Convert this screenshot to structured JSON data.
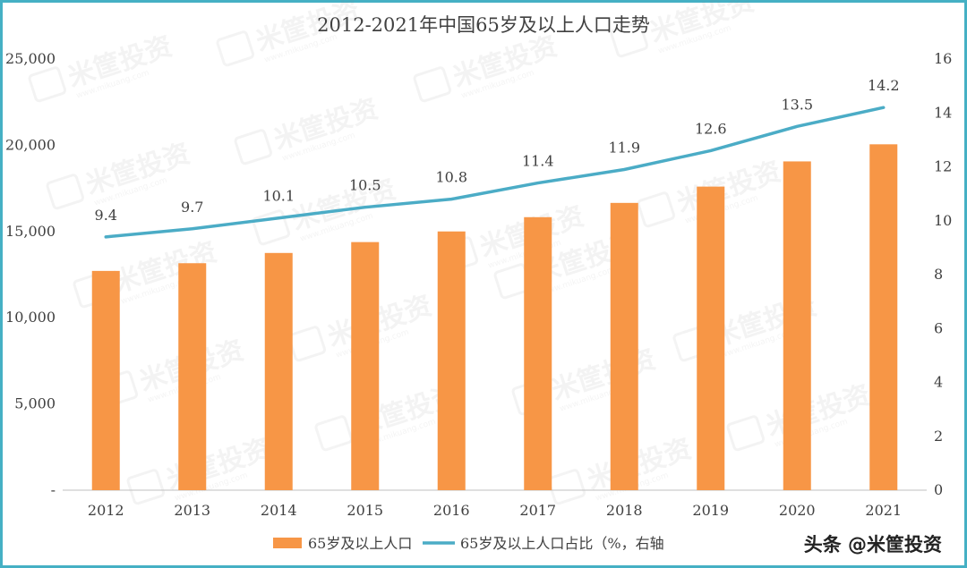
{
  "title": "2012-2021年中国65岁及以上人口走势",
  "footer_badge": "头条 @米筐投资",
  "watermark": {
    "main": "米筐投资",
    "sub": "www.mikuang.com"
  },
  "colors": {
    "bar": "#f79646",
    "line": "#4bacc6",
    "frame": "#45b0c4",
    "text": "#404040",
    "axis": "#bfbfbf"
  },
  "chart_data": {
    "type": "bar",
    "categories": [
      "2012",
      "2013",
      "2014",
      "2015",
      "2016",
      "2017",
      "2018",
      "2019",
      "2020",
      "2021"
    ],
    "series": [
      {
        "name": "65岁及以上人口",
        "type": "bar",
        "axis": "left",
        "values": [
          12714,
          13161,
          13755,
          14386,
          15003,
          15831,
          16658,
          17603,
          19064,
          20056
        ]
      },
      {
        "name": "65岁及以上人口占比（%，右轴",
        "type": "line",
        "axis": "right",
        "values": [
          9.4,
          9.7,
          10.1,
          10.5,
          10.8,
          11.4,
          11.9,
          12.6,
          13.5,
          14.2
        ],
        "labels": [
          "9.4",
          "9.7",
          "10.1",
          "10.5",
          "10.8",
          "11.4",
          "11.9",
          "12.6",
          "13.5",
          "14.2"
        ]
      }
    ],
    "y_left": {
      "lim": [
        0,
        25000
      ],
      "ticks": [
        "-",
        "5,000",
        "10,000",
        "15,000",
        "20,000",
        "25,000"
      ]
    },
    "y_right": {
      "lim": [
        0,
        16
      ],
      "ticks": [
        "0",
        "2",
        "4",
        "6",
        "8",
        "10",
        "12",
        "14",
        "16"
      ]
    },
    "grid": false,
    "legend_position": "bottom"
  }
}
